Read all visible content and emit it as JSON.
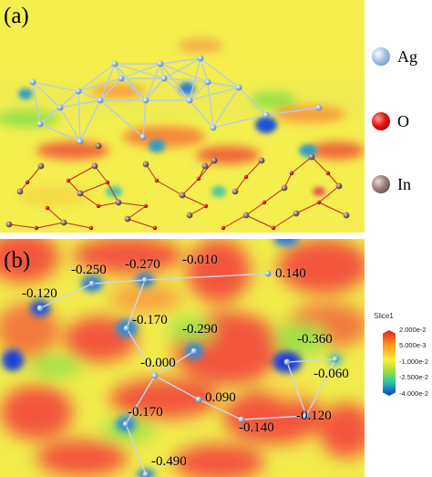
{
  "panels": {
    "a_label": "(a)",
    "b_label": "(b)"
  },
  "legend": [
    {
      "label": "Ag",
      "color": "#a9c8e6"
    },
    {
      "label": "O",
      "color": "#e01414"
    },
    {
      "label": "In",
      "color": "#9a7f78"
    }
  ],
  "charge_labels": [
    "-0.250",
    "-0.270",
    "-0.010",
    "0.140",
    "-0.120",
    "-0.170",
    "-0.290",
    "-0.360",
    "-0.000",
    "-0.060",
    "0.090",
    "-0.170",
    "-0.140",
    "-0.120",
    "-0.490"
  ],
  "colorbar": {
    "title": "Slice1",
    "ticks": [
      "2.000e-2",
      "5.000e-3",
      "-1.000e-2",
      "-2.500e-2",
      "-4.000e-2"
    ]
  }
}
